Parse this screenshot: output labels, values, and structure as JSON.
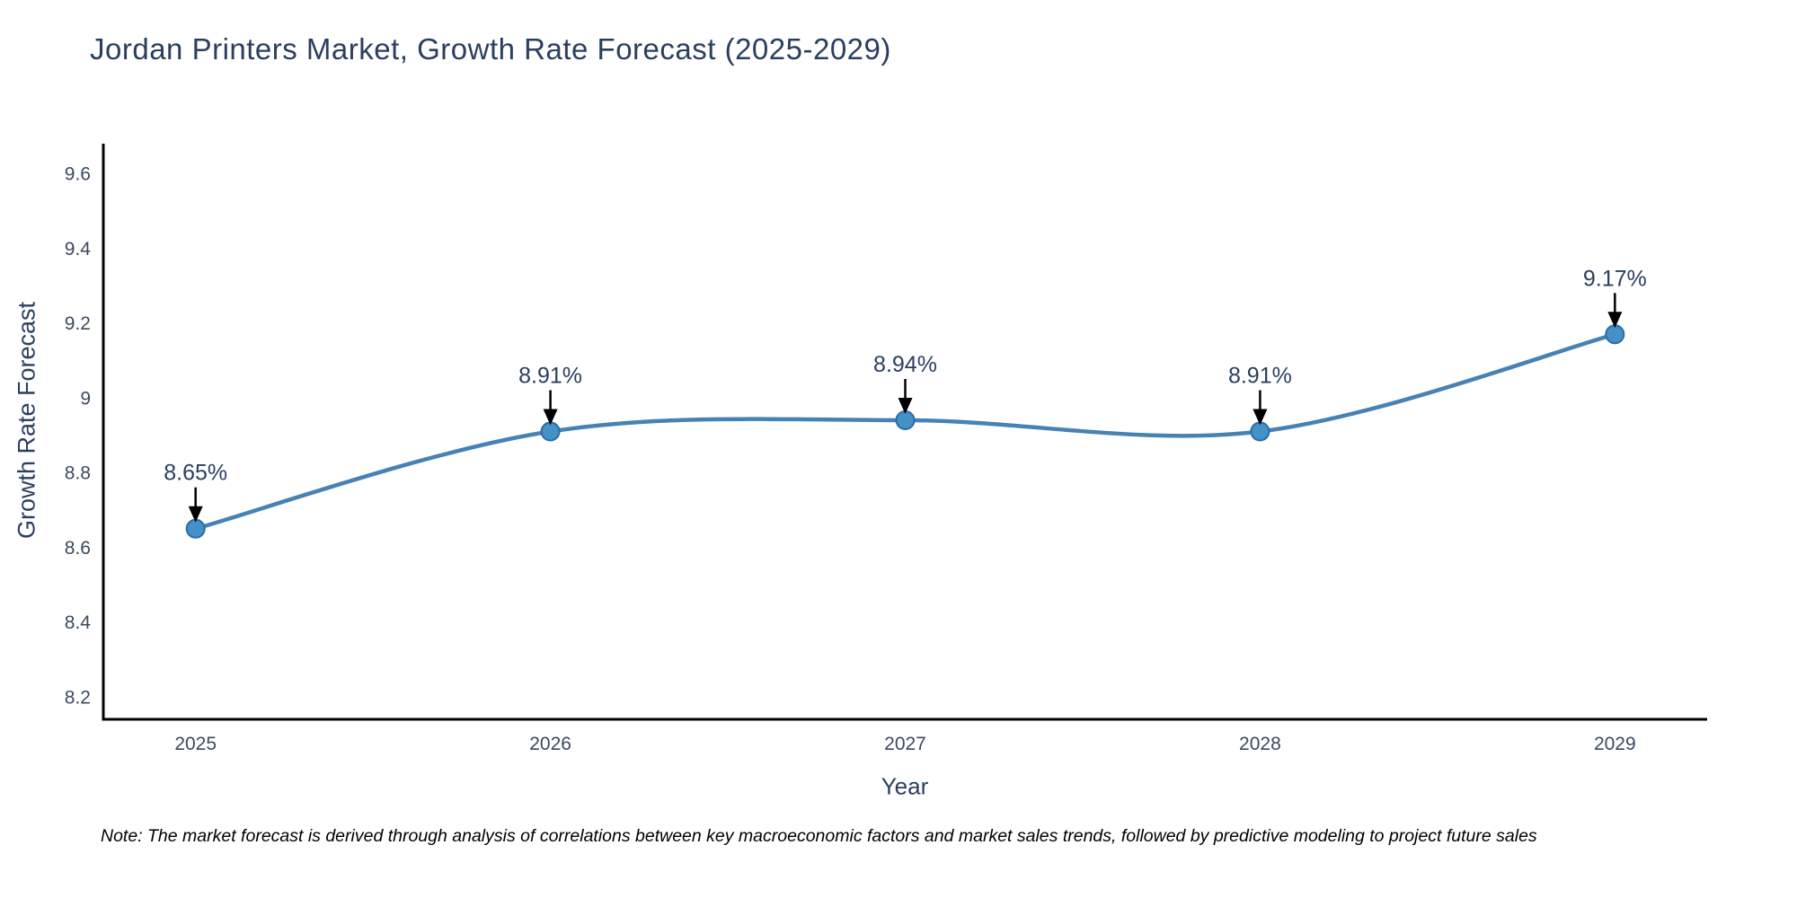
{
  "header": {
    "title": "Jordan Printers Market, Growth Rate Forecast (2025-2029)"
  },
  "footnote": {
    "text": "Note: The market forecast is derived through analysis of correlations between key macroeconomic factors and market sales trends, followed by predictive modeling to project future sales"
  },
  "chart_data": {
    "type": "line",
    "title": "Jordan Printers Market, Growth Rate Forecast (2025-2029)",
    "xlabel": "Year",
    "ylabel": "Growth Rate Forecast",
    "x": [
      2025,
      2026,
      2027,
      2028,
      2029
    ],
    "values": [
      8.65,
      8.91,
      8.94,
      8.91,
      9.17
    ],
    "point_labels": [
      "8.65%",
      "8.91%",
      "8.94%",
      "8.91%",
      "9.17%"
    ],
    "xtick_labels": [
      "2025",
      "2026",
      "2027",
      "2028",
      "2029"
    ],
    "yticks": [
      8.2,
      8.4,
      8.6,
      8.8,
      9,
      9.2,
      9.4,
      9.6
    ],
    "ytick_labels": [
      "8.2",
      "8.4",
      "8.6",
      "8.8",
      "9",
      "9.2",
      "9.4",
      "9.6"
    ],
    "xlim": [
      2024.74,
      2029.26
    ],
    "ylim": [
      8.14,
      9.68
    ],
    "grid": false,
    "legend": false,
    "line_shape": "spline",
    "annotations_style": "value label with down arrow above each point",
    "colors": {
      "line": "#4682b4",
      "marker_fill": "#4690c8",
      "marker_stroke": "#2b6ca8",
      "arrow": "#000000",
      "axis_line": "#000000",
      "text": "#2a3f5f"
    }
  }
}
